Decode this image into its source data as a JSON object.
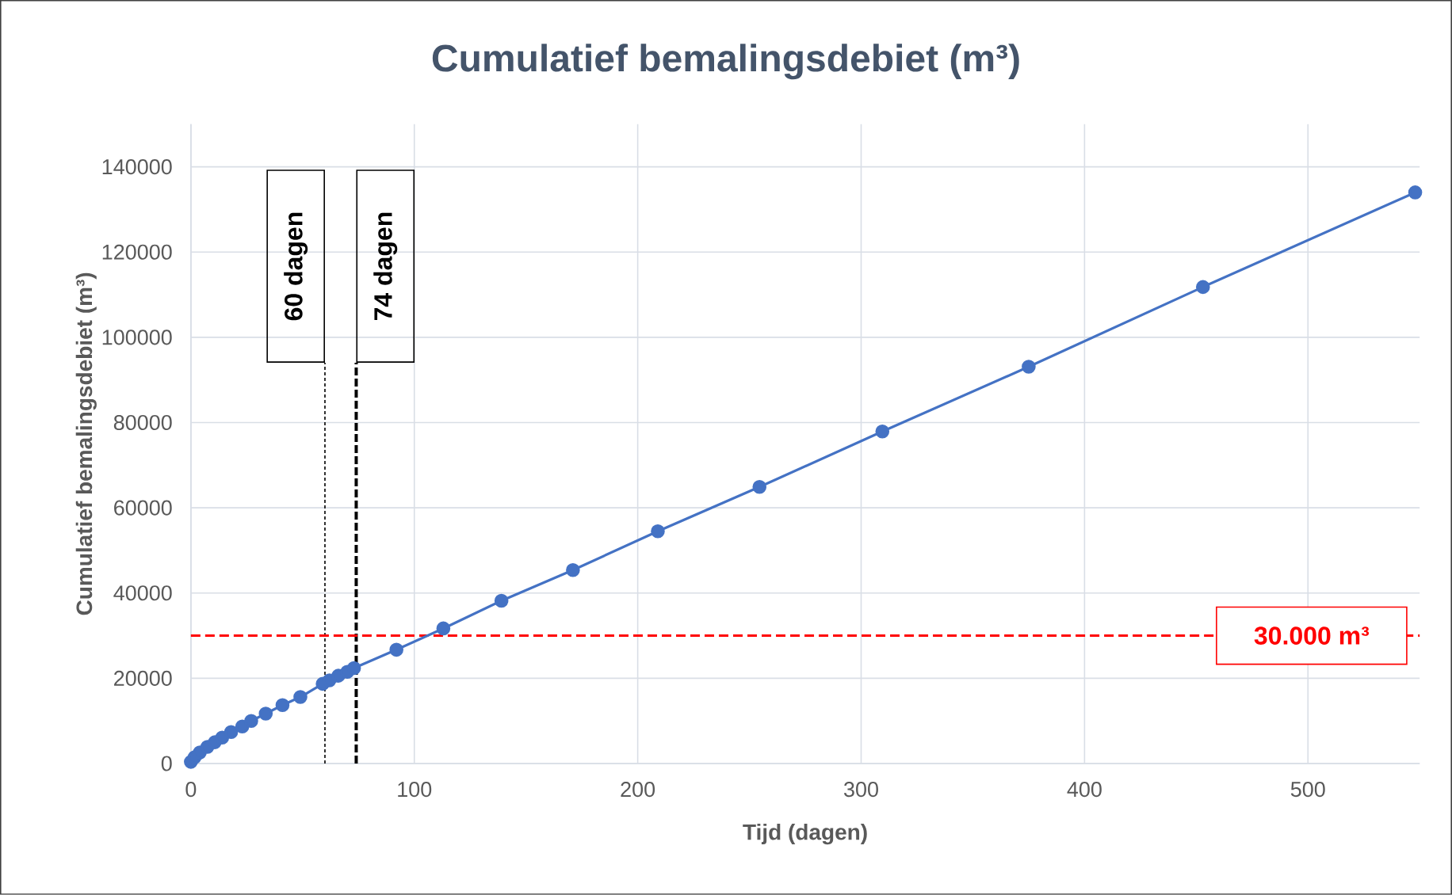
{
  "chart_data": {
    "type": "line",
    "title": "Cumulatief bemalingsdebiet (m³)",
    "xlabel": "Tijd (dagen)",
    "ylabel": "Cumulatief bemalingsdebiet (m³)",
    "x": [
      0,
      1.7,
      4,
      7.4,
      10.7,
      14,
      18,
      23,
      27,
      33.5,
      41,
      49,
      59,
      62,
      66,
      70,
      73,
      92,
      113,
      139,
      171,
      209,
      254.5,
      309.5,
      375,
      453,
      548
    ],
    "series": [
      {
        "color": "#4472c4",
        "values": [
          400,
          1500,
          2600,
          3900,
          5000,
          6100,
          7400,
          8700,
          10000,
          11700,
          13700,
          15600,
          18700,
          19500,
          20600,
          21500,
          22400,
          26700,
          31700,
          38200,
          45400,
          54500,
          64900,
          77900,
          93100,
          111800,
          134000
        ]
      }
    ],
    "marker": "circle",
    "line_style": "solid",
    "grid": true,
    "xlim": [
      0,
      550
    ],
    "ylim": [
      0,
      150000
    ],
    "xticks": [
      0,
      100,
      200,
      300,
      400,
      500
    ],
    "yticks": [
      0,
      20000,
      40000,
      60000,
      80000,
      100000,
      120000,
      140000
    ],
    "ref_lines": [
      {
        "axis": "x",
        "value": 60,
        "label": "60 dagen",
        "color": "#000000",
        "line_style": "dotted"
      },
      {
        "axis": "x",
        "value": 74,
        "label": "74 dagen",
        "color": "#000000",
        "line_style": "dashed"
      },
      {
        "axis": "y",
        "value": 30000,
        "label": "30.000 m³",
        "color": "#ff0000",
        "line_style": "dashed"
      }
    ]
  }
}
